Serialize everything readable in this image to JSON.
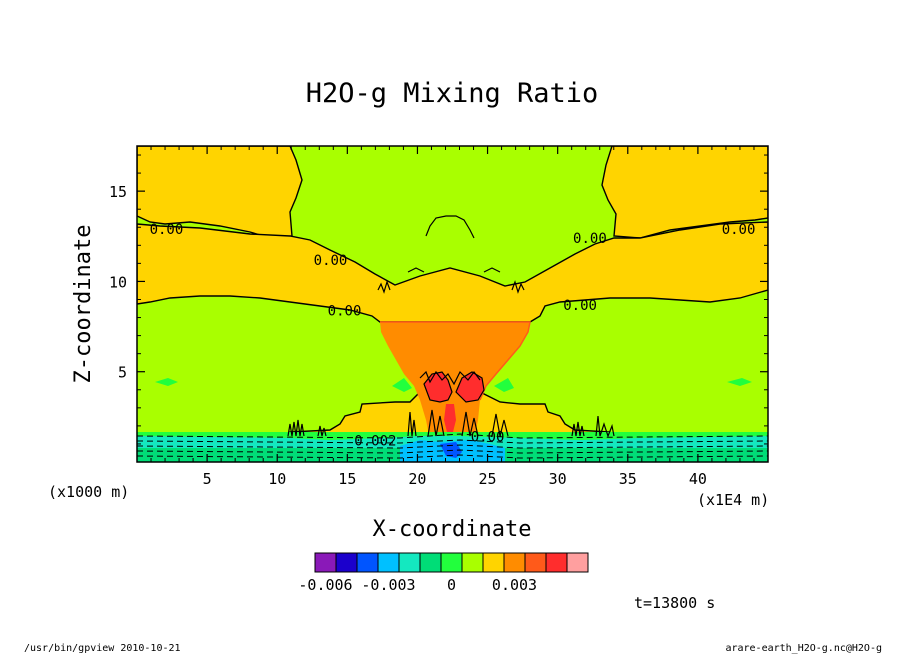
{
  "chart_data": {
    "type": "heatmap",
    "title": "H2O-g Mixing Ratio",
    "xlabel": "X-coordinate",
    "ylabel": "Z-coordinate",
    "x_unit_left": "(x1000 m)",
    "x_unit_right": "(x1E4 m)",
    "xlim": [
      0,
      45
    ],
    "ylim": [
      0,
      17.5
    ],
    "x_ticks": [
      5,
      10,
      15,
      20,
      25,
      30,
      35,
      40
    ],
    "y_ticks": [
      5,
      10,
      15
    ],
    "contour_labels": [
      {
        "text": "0.00",
        "x": 2.1,
        "y": 12.9
      },
      {
        "text": "0.00",
        "x": 42.9,
        "y": 12.9
      },
      {
        "text": "0.00",
        "x": 13.8,
        "y": 11.2
      },
      {
        "text": "0.00",
        "x": 32.3,
        "y": 12.4
      },
      {
        "text": "0.00",
        "x": 14.8,
        "y": 8.4
      },
      {
        "text": "0.00",
        "x": 31.6,
        "y": 8.7
      },
      {
        "text": "0.002",
        "x": 17.0,
        "y": 1.2
      },
      {
        "text": "0.00",
        "x": 25.0,
        "y": 1.4
      }
    ],
    "colorbar": {
      "colors": [
        "#8a19b8",
        "#1b00cc",
        "#0055ff",
        "#00c0ff",
        "#14e8c0",
        "#00dd77",
        "#22ff3d",
        "#a9ff00",
        "#ffd400",
        "#ff8c00",
        "#ff5a1a",
        "#ff2d2d",
        "#ff9f9f"
      ],
      "tick_labels": [
        "-0.006",
        "-0.003",
        "0",
        "0.003"
      ],
      "tick_values": [
        -0.006,
        -0.003,
        0,
        0.003
      ],
      "vmin": -0.0065,
      "vmax": 0.0065
    }
  },
  "time_label": "t=13800 s",
  "footer_left": "/usr/bin/gpview   2010-10-21",
  "footer_right": "arare-earth_H2O-g.nc@H2O-g"
}
